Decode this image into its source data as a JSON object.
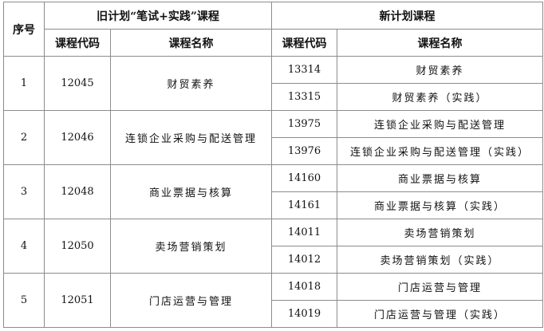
{
  "header": {
    "seq": "序号",
    "old_plan": "旧计划“笔试+实践”课程",
    "new_plan": "新计划课程",
    "code": "课程代码",
    "name": "课程名称"
  },
  "rows": [
    {
      "seq": "1",
      "old_code": "12045",
      "old_name": "财贸素养",
      "new": [
        {
          "code": "13314",
          "name": "财贸素养"
        },
        {
          "code": "13315",
          "name": "财贸素养（实践）"
        }
      ]
    },
    {
      "seq": "2",
      "old_code": "12046",
      "old_name": "连锁企业采购与配送管理",
      "new": [
        {
          "code": "13975",
          "name": "连锁企业采购与配送管理"
        },
        {
          "code": "13976",
          "name": "连锁企业采购与配送管理（实践）"
        }
      ]
    },
    {
      "seq": "3",
      "old_code": "12048",
      "old_name": "商业票据与核算",
      "new": [
        {
          "code": "14160",
          "name": "商业票据与核算"
        },
        {
          "code": "14161",
          "name": "商业票据与核算（实践）"
        }
      ]
    },
    {
      "seq": "4",
      "old_code": "12050",
      "old_name": "卖场营销策划",
      "new": [
        {
          "code": "14011",
          "name": "卖场营销策划"
        },
        {
          "code": "14012",
          "name": "卖场营销策划（实践）"
        }
      ]
    },
    {
      "seq": "5",
      "old_code": "12051",
      "old_name": "门店运营与管理",
      "new": [
        {
          "code": "14018",
          "name": "门店运营与管理"
        },
        {
          "code": "14019",
          "name": "门店运营与管理（实践）"
        }
      ]
    }
  ]
}
